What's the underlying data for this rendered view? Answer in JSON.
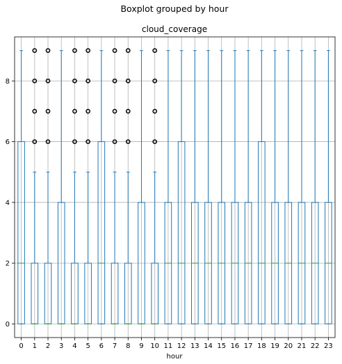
{
  "chart_data": {
    "type": "boxplot",
    "suptitle": "Boxplot grouped by hour",
    "title": "cloud_coverage",
    "xlabel": "hour",
    "ylabel": "",
    "categories": [
      "0",
      "1",
      "2",
      "3",
      "4",
      "5",
      "6",
      "7",
      "8",
      "9",
      "10",
      "11",
      "12",
      "13",
      "14",
      "15",
      "16",
      "17",
      "18",
      "19",
      "20",
      "21",
      "22",
      "23"
    ],
    "ylim": [
      -0.45,
      9.45
    ],
    "yticks": [
      0,
      2,
      4,
      6,
      8
    ],
    "grid": true,
    "colors": {
      "box": "#1f77b4",
      "median": "#2ca02c",
      "grid": "#b0b0b0",
      "outlier": "#000000"
    },
    "boxes": [
      {
        "q1": 0,
        "median": 2,
        "q3": 6,
        "whisker_low": 0,
        "whisker_high": 9,
        "outliers": []
      },
      {
        "q1": 0,
        "median": 0,
        "q3": 2,
        "whisker_low": 0,
        "whisker_high": 5,
        "outliers": [
          6,
          7,
          8,
          9
        ]
      },
      {
        "q1": 0,
        "median": 0,
        "q3": 2,
        "whisker_low": 0,
        "whisker_high": 5,
        "outliers": [
          6,
          7,
          8,
          9
        ]
      },
      {
        "q1": 0,
        "median": 0,
        "q3": 4,
        "whisker_low": 0,
        "whisker_high": 9,
        "outliers": []
      },
      {
        "q1": 0,
        "median": 0,
        "q3": 2,
        "whisker_low": 0,
        "whisker_high": 5,
        "outliers": [
          6,
          7,
          8,
          9
        ]
      },
      {
        "q1": 0,
        "median": 0,
        "q3": 2,
        "whisker_low": 0,
        "whisker_high": 5,
        "outliers": [
          6,
          7,
          8,
          9
        ]
      },
      {
        "q1": 0,
        "median": 2,
        "q3": 6,
        "whisker_low": 0,
        "whisker_high": 9,
        "outliers": []
      },
      {
        "q1": 0,
        "median": 0,
        "q3": 2,
        "whisker_low": 0,
        "whisker_high": 5,
        "outliers": [
          6,
          7,
          8,
          9
        ]
      },
      {
        "q1": 0,
        "median": 0,
        "q3": 2,
        "whisker_low": 0,
        "whisker_high": 5,
        "outliers": [
          6,
          7,
          8,
          9
        ]
      },
      {
        "q1": 0,
        "median": 0,
        "q3": 4,
        "whisker_low": 0,
        "whisker_high": 9,
        "outliers": []
      },
      {
        "q1": 0,
        "median": 0,
        "q3": 2,
        "whisker_low": 0,
        "whisker_high": 5,
        "outliers": [
          6,
          7,
          8,
          9
        ]
      },
      {
        "q1": 0,
        "median": 2,
        "q3": 4,
        "whisker_low": 0,
        "whisker_high": 9,
        "outliers": []
      },
      {
        "q1": 0,
        "median": 2,
        "q3": 6,
        "whisker_low": 0,
        "whisker_high": 9,
        "outliers": []
      },
      {
        "q1": 0,
        "median": 2,
        "q3": 4,
        "whisker_low": 0,
        "whisker_high": 9,
        "outliers": []
      },
      {
        "q1": 0,
        "median": 2,
        "q3": 4,
        "whisker_low": 0,
        "whisker_high": 9,
        "outliers": []
      },
      {
        "q1": 0,
        "median": 2,
        "q3": 4,
        "whisker_low": 0,
        "whisker_high": 9,
        "outliers": []
      },
      {
        "q1": 0,
        "median": 2,
        "q3": 4,
        "whisker_low": 0,
        "whisker_high": 9,
        "outliers": []
      },
      {
        "q1": 0,
        "median": 2,
        "q3": 4,
        "whisker_low": 0,
        "whisker_high": 9,
        "outliers": []
      },
      {
        "q1": 0,
        "median": 2,
        "q3": 6,
        "whisker_low": 0,
        "whisker_high": 9,
        "outliers": []
      },
      {
        "q1": 0,
        "median": 2,
        "q3": 4,
        "whisker_low": 0,
        "whisker_high": 9,
        "outliers": []
      },
      {
        "q1": 0,
        "median": 2,
        "q3": 4,
        "whisker_low": 0,
        "whisker_high": 9,
        "outliers": []
      },
      {
        "q1": 0,
        "median": 2,
        "q3": 4,
        "whisker_low": 0,
        "whisker_high": 9,
        "outliers": []
      },
      {
        "q1": 0,
        "median": 2,
        "q3": 4,
        "whisker_low": 0,
        "whisker_high": 9,
        "outliers": []
      },
      {
        "q1": 0,
        "median": 2,
        "q3": 4,
        "whisker_low": 0,
        "whisker_high": 9,
        "outliers": []
      }
    ]
  }
}
